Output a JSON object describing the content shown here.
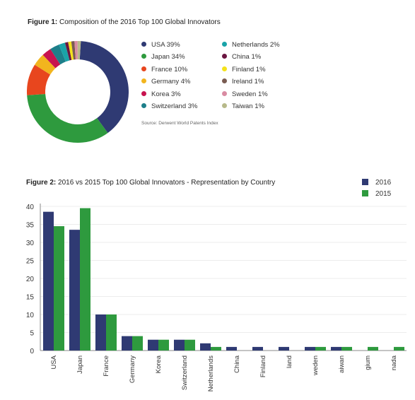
{
  "fig1": {
    "label": "Figure 1:",
    "title": "Composition of the 2016 Top 100 Global Innovators",
    "source": "Source: Derwent World Patents Index"
  },
  "fig2": {
    "label": "Figure 2:",
    "title": "2016 vs 2015 Top 100 Global Innovators - Representation by Country"
  },
  "chart_data": [
    {
      "type": "pie",
      "donut": true,
      "title": "Composition of the 2016 Top 100 Global Innovators",
      "legend_placement": "right",
      "slices": [
        {
          "label": "USA 39%",
          "value": 39,
          "color": "#2f3a73"
        },
        {
          "label": "Japan 34%",
          "value": 34,
          "color": "#2e9a3e"
        },
        {
          "label": "France 10%",
          "value": 10,
          "color": "#e8461e"
        },
        {
          "label": "Germany 4%",
          "value": 4,
          "color": "#f2b51e"
        },
        {
          "label": "Korea 3%",
          "value": 3,
          "color": "#c8134f"
        },
        {
          "label": "Switzerland 3%",
          "value": 3,
          "color": "#1d7f8a"
        },
        {
          "label": "Netherlands 2%",
          "value": 2,
          "color": "#1aa3a8"
        },
        {
          "label": "China 1%",
          "value": 1,
          "color": "#6b1540"
        },
        {
          "label": "Finland 1%",
          "value": 1,
          "color": "#f4e21a"
        },
        {
          "label": "Ireland 1%",
          "value": 1,
          "color": "#7a5c52"
        },
        {
          "label": "Sweden 1%",
          "value": 1,
          "color": "#d98ba2"
        },
        {
          "label": "Taiwan 1%",
          "value": 1,
          "color": "#b7b98a"
        }
      ]
    },
    {
      "type": "bar",
      "title": "2016 vs 2015 Top 100 Global Innovators - Representation by Country",
      "categories": [
        "USA",
        "Japan",
        "France",
        "Germany",
        "Korea",
        "Switzerland",
        "Netherlands",
        "China",
        "Finland",
        "Ireland",
        "Sweden",
        "Taiwan",
        "Belgium",
        "Canada"
      ],
      "tick_labels": [
        "USA",
        "Japan",
        "France",
        "Germany",
        "Korea",
        "Switzerland",
        "Netherlands",
        "China",
        "Finland",
        "land",
        "weden",
        "aiwan",
        "gium",
        "nada"
      ],
      "series": [
        {
          "name": "2016",
          "color": "#2f3a73",
          "values": [
            38.5,
            33.5,
            10,
            4,
            3,
            3,
            2,
            1,
            1,
            1,
            1,
            1,
            0,
            0
          ]
        },
        {
          "name": "2015",
          "color": "#2e9a3e",
          "values": [
            34.5,
            39.5,
            10,
            4,
            3,
            3,
            1,
            0,
            0,
            0,
            1,
            1,
            1,
            1
          ]
        }
      ],
      "yticks": [
        0,
        5,
        10,
        15,
        20,
        25,
        30,
        35,
        40
      ],
      "ylim": [
        0,
        40
      ],
      "grid": true,
      "legend_placement": "top-right"
    }
  ]
}
